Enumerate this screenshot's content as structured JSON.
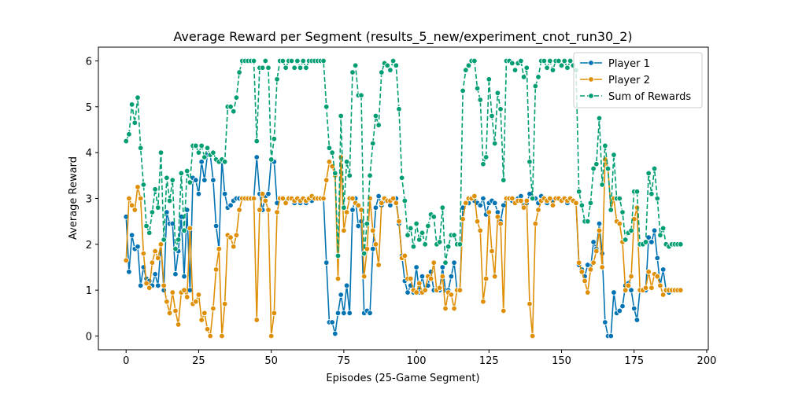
{
  "chart_data": {
    "type": "line",
    "title": "Average Reward per Segment (results_5_new/experiment_cnot_run30_2)",
    "x_label": "Episodes (25-Game Segment)",
    "y_label": "Average Reward",
    "xlim": [
      -9.55,
      200.55
    ],
    "ylim": [
      -0.3,
      6.3
    ],
    "xticks": [
      0,
      25,
      50,
      75,
      100,
      125,
      150,
      175,
      200
    ],
    "yticks": [
      0,
      1,
      2,
      3,
      4,
      5,
      6
    ],
    "grid": false,
    "legend": "upper right",
    "x": [
      0,
      1,
      2,
      3,
      4,
      5,
      6,
      7,
      8,
      9,
      10,
      11,
      12,
      13,
      14,
      15,
      16,
      17,
      18,
      19,
      20,
      21,
      22,
      23,
      24,
      25,
      26,
      27,
      28,
      29,
      30,
      31,
      32,
      33,
      34,
      35,
      36,
      37,
      38,
      39,
      40,
      41,
      42,
      43,
      44,
      45,
      46,
      47,
      48,
      49,
      50,
      51,
      52,
      53,
      54,
      55,
      56,
      57,
      58,
      59,
      60,
      61,
      62,
      63,
      64,
      65,
      66,
      67,
      68,
      69,
      70,
      71,
      72,
      73,
      74,
      75,
      76,
      77,
      78,
      79,
      80,
      81,
      82,
      83,
      84,
      85,
      86,
      87,
      88,
      89,
      90,
      91,
      92,
      93,
      94,
      95,
      96,
      97,
      98,
      99,
      100,
      101,
      102,
      103,
      104,
      105,
      106,
      107,
      108,
      109,
      110,
      111,
      112,
      113,
      114,
      115,
      116,
      117,
      118,
      119,
      120,
      121,
      122,
      123,
      124,
      125,
      126,
      127,
      128,
      129,
      130,
      131,
      132,
      133,
      134,
      135,
      136,
      137,
      138,
      139,
      140,
      141,
      142,
      143,
      144,
      145,
      146,
      147,
      148,
      149,
      150,
      151,
      152,
      153,
      154,
      155,
      156,
      157,
      158,
      159,
      160,
      161,
      162,
      163,
      164,
      165,
      166,
      167,
      168,
      169,
      170,
      171,
      172,
      173,
      174,
      175,
      176,
      177,
      178,
      179,
      180,
      181,
      182,
      183,
      184,
      185,
      186,
      187,
      188,
      189,
      190,
      191
    ],
    "series": [
      {
        "name": "Player 1",
        "color": "#0173b2",
        "dashed": false,
        "values": [
          2.6,
          1.4,
          2.2,
          1.9,
          1.95,
          1.1,
          1.5,
          1.25,
          1.2,
          1.1,
          1.35,
          1.1,
          2.0,
          1.0,
          2.7,
          2.45,
          2.45,
          1.35,
          1.85,
          2.6,
          1.3,
          2.75,
          1.0,
          3.45,
          3.4,
          3.1,
          3.8,
          3.4,
          3.95,
          3.95,
          3.4,
          2.4,
          1.9,
          3.85,
          3.1,
          2.8,
          2.85,
          2.95,
          3.0,
          3.0,
          3.0,
          3.0,
          3.0,
          3.0,
          3.0,
          3.9,
          3.1,
          2.75,
          3.05,
          3.1,
          3.85,
          3.8,
          2.9,
          3.0,
          3.0,
          2.95,
          3.0,
          3.0,
          2.9,
          3.0,
          2.9,
          3.0,
          2.9,
          3.0,
          2.95,
          3.0,
          3.0,
          3.0,
          3.0,
          1.6,
          0.3,
          0.3,
          0.05,
          0.5,
          0.9,
          0.5,
          1.1,
          0.5,
          2.75,
          3.0,
          2.4,
          2.5,
          0.5,
          0.55,
          0.5,
          1.9,
          2.8,
          3.05,
          2.85,
          2.95,
          2.95,
          2.85,
          3.0,
          3.0,
          2.45,
          1.75,
          1.2,
          0.95,
          1.1,
          0.95,
          1.5,
          0.95,
          1.3,
          1.0,
          1.1,
          1.4,
          1.0,
          1.0,
          1.0,
          1.5,
          1.0,
          1.0,
          1.3,
          1.6,
          1.0,
          1.0,
          2.8,
          2.9,
          2.9,
          3.0,
          2.95,
          2.9,
          2.85,
          3.0,
          2.65,
          2.9,
          2.95,
          2.9,
          2.7,
          2.5,
          2.85,
          3.0,
          3.0,
          2.95,
          2.9,
          3.0,
          3.05,
          2.85,
          2.9,
          3.1,
          3.0,
          3.0,
          2.9,
          3.05,
          3.0,
          2.9,
          3.0,
          2.95,
          3.0,
          3.0,
          2.95,
          3.0,
          2.9,
          3.0,
          2.95,
          2.9,
          1.55,
          1.45,
          1.3,
          1.55,
          1.45,
          2.05,
          1.9,
          2.45,
          1.8,
          0.3,
          0.0,
          0.0,
          0.95,
          0.5,
          0.55,
          0.65,
          1.1,
          1.15,
          1.0,
          0.6,
          0.35,
          1.0,
          1.0,
          1.0,
          2.15,
          2.05,
          2.3,
          1.7,
          1.1,
          1.45,
          1.0,
          0.95,
          1.0,
          1.0,
          1.0,
          1.0
        ]
      },
      {
        "name": "Player 2",
        "color": "#de8f05",
        "dashed": false,
        "values": [
          1.65,
          3.0,
          2.85,
          2.75,
          3.25,
          3.0,
          1.8,
          1.15,
          1.05,
          1.6,
          1.85,
          1.7,
          2.0,
          1.1,
          0.75,
          0.5,
          0.95,
          0.55,
          0.25,
          0.95,
          1.0,
          0.85,
          2.35,
          0.7,
          0.75,
          0.9,
          0.35,
          0.5,
          0.15,
          0.0,
          0.6,
          1.45,
          1.9,
          0.0,
          0.7,
          2.2,
          2.15,
          1.95,
          2.2,
          2.75,
          3.0,
          3.0,
          3.0,
          3.0,
          3.0,
          0.35,
          2.75,
          3.1,
          2.95,
          2.75,
          0.0,
          0.5,
          2.7,
          3.0,
          3.0,
          2.9,
          3.0,
          3.0,
          2.95,
          3.0,
          2.95,
          3.0,
          2.95,
          3.0,
          3.05,
          3.0,
          3.0,
          3.0,
          3.0,
          3.4,
          3.8,
          3.7,
          3.5,
          1.25,
          3.9,
          2.3,
          2.7,
          3.0,
          3.0,
          2.9,
          2.85,
          2.75,
          1.3,
          1.9,
          3.0,
          2.3,
          2.0,
          1.55,
          2.9,
          3.0,
          2.95,
          2.95,
          3.0,
          2.9,
          2.5,
          1.7,
          1.75,
          1.25,
          1.25,
          1.0,
          0.95,
          1.15,
          0.95,
          1.0,
          1.3,
          1.25,
          1.6,
          1.0,
          1.05,
          1.3,
          0.6,
          0.95,
          0.9,
          0.6,
          1.0,
          1.0,
          2.55,
          2.9,
          3.0,
          3.0,
          3.05,
          2.5,
          2.3,
          0.75,
          1.25,
          2.7,
          1.85,
          1.3,
          2.6,
          2.45,
          0.55,
          3.0,
          3.0,
          3.0,
          2.9,
          2.95,
          2.95,
          2.8,
          2.95,
          0.7,
          0.0,
          2.45,
          2.75,
          2.95,
          3.0,
          2.95,
          3.0,
          2.85,
          3.0,
          3.0,
          2.95,
          3.0,
          2.95,
          3.0,
          2.95,
          2.9,
          1.6,
          1.4,
          1.2,
          0.95,
          1.45,
          1.6,
          1.85,
          2.3,
          1.5,
          3.85,
          3.65,
          2.75,
          3.0,
          2.5,
          2.45,
          2.05,
          1.0,
          1.1,
          1.3,
          2.55,
          2.8,
          1.0,
          1.0,
          1.05,
          1.4,
          1.05,
          1.35,
          1.3,
          1.1,
          0.9,
          1.0,
          1.0,
          1.0,
          1.0,
          1.0,
          1.0
        ]
      },
      {
        "name": "Sum of Rewards",
        "color": "#029e73",
        "dashed": true,
        "values": [
          4.25,
          4.4,
          5.05,
          4.65,
          5.2,
          4.1,
          3.3,
          2.4,
          2.25,
          2.7,
          3.2,
          2.8,
          4.0,
          2.1,
          3.45,
          2.95,
          3.4,
          1.9,
          2.1,
          3.55,
          2.3,
          3.6,
          3.35,
          4.15,
          4.15,
          4.0,
          4.15,
          3.9,
          4.1,
          3.95,
          4.0,
          3.85,
          3.8,
          3.85,
          3.8,
          5.0,
          5.0,
          4.9,
          5.2,
          5.75,
          6.0,
          6.0,
          6.0,
          6.0,
          6.0,
          4.25,
          5.85,
          5.85,
          6.0,
          5.85,
          3.85,
          4.3,
          5.6,
          6.0,
          6.0,
          5.85,
          6.0,
          6.0,
          5.85,
          6.0,
          5.85,
          6.0,
          5.85,
          6.0,
          6.0,
          6.0,
          6.0,
          6.0,
          6.0,
          5.0,
          4.1,
          4.0,
          3.55,
          1.75,
          4.8,
          2.8,
          3.8,
          3.5,
          5.75,
          5.9,
          5.25,
          5.25,
          1.8,
          2.45,
          3.5,
          4.2,
          4.8,
          4.6,
          5.75,
          5.95,
          5.9,
          5.8,
          6.0,
          5.9,
          4.95,
          3.45,
          2.95,
          2.2,
          2.35,
          1.95,
          2.45,
          2.1,
          2.25,
          2.0,
          2.4,
          2.65,
          2.6,
          2.0,
          2.05,
          2.8,
          1.6,
          1.95,
          2.2,
          2.2,
          2.0,
          2.0,
          5.35,
          5.8,
          5.9,
          6.0,
          6.0,
          5.4,
          5.15,
          3.75,
          3.9,
          5.6,
          4.8,
          4.2,
          5.3,
          4.95,
          3.4,
          6.0,
          6.0,
          5.95,
          5.8,
          5.95,
          6.0,
          5.65,
          5.85,
          3.8,
          3.0,
          5.45,
          5.65,
          6.0,
          6.0,
          5.85,
          6.0,
          5.8,
          6.0,
          6.0,
          5.9,
          6.0,
          5.85,
          6.0,
          5.9,
          5.8,
          3.15,
          2.85,
          2.5,
          2.5,
          2.9,
          3.65,
          3.75,
          4.75,
          3.3,
          4.15,
          3.65,
          2.75,
          3.95,
          3.0,
          3.0,
          2.7,
          2.1,
          2.25,
          2.3,
          3.15,
          3.15,
          2.0,
          2.0,
          2.05,
          3.55,
          3.1,
          3.65,
          3.0,
          2.2,
          2.35,
          2.0,
          1.95,
          2.0,
          2.0,
          2.0,
          2.0
        ]
      }
    ]
  }
}
